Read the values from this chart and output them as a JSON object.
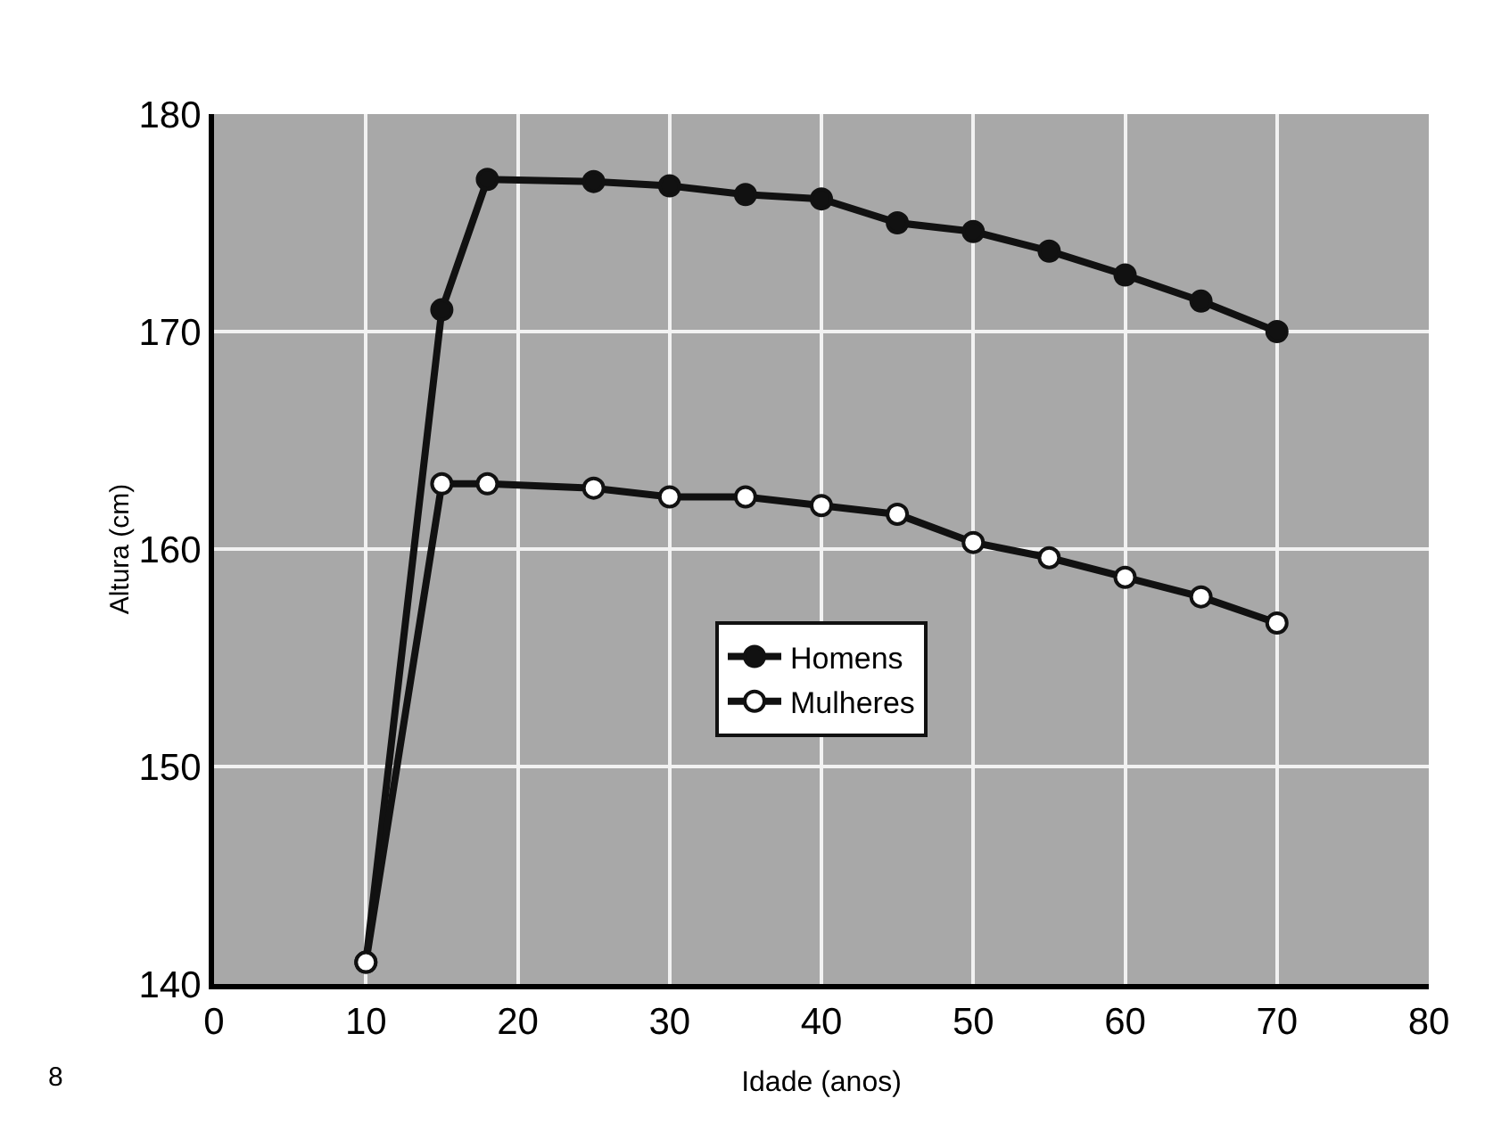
{
  "chart_data": {
    "type": "line",
    "xlabel": "Idade (anos)",
    "ylabel": "Altura (cm)",
    "xlim": [
      0,
      80
    ],
    "xticks": [
      0,
      10,
      20,
      30,
      40,
      50,
      60,
      70,
      80
    ],
    "ylim": [
      140,
      180
    ],
    "yticks": [
      140,
      150,
      160,
      170,
      180
    ],
    "grid": true,
    "legend": "center",
    "marker": "circle",
    "line_style": "solid",
    "annotations": [
      "8"
    ],
    "series": [
      {
        "name": "Homens",
        "color": "#111111",
        "x": [
          10,
          15,
          18,
          25,
          30,
          35,
          40,
          45,
          50,
          55,
          60,
          65,
          70
        ],
        "values": [
          141,
          171,
          177,
          176.9,
          176.7,
          176.3,
          176.1,
          175,
          174.6,
          173.7,
          172.6,
          171.4,
          170
        ]
      },
      {
        "name": "Mulheres",
        "color": "#ffffff",
        "x": [
          10,
          15,
          18,
          25,
          30,
          35,
          40,
          45,
          50,
          55,
          60,
          65,
          70
        ],
        "values": [
          141,
          163,
          163,
          162.8,
          162.4,
          162.4,
          162,
          161.6,
          160.3,
          159.6,
          158.7,
          157.8,
          156.6
        ]
      }
    ]
  }
}
